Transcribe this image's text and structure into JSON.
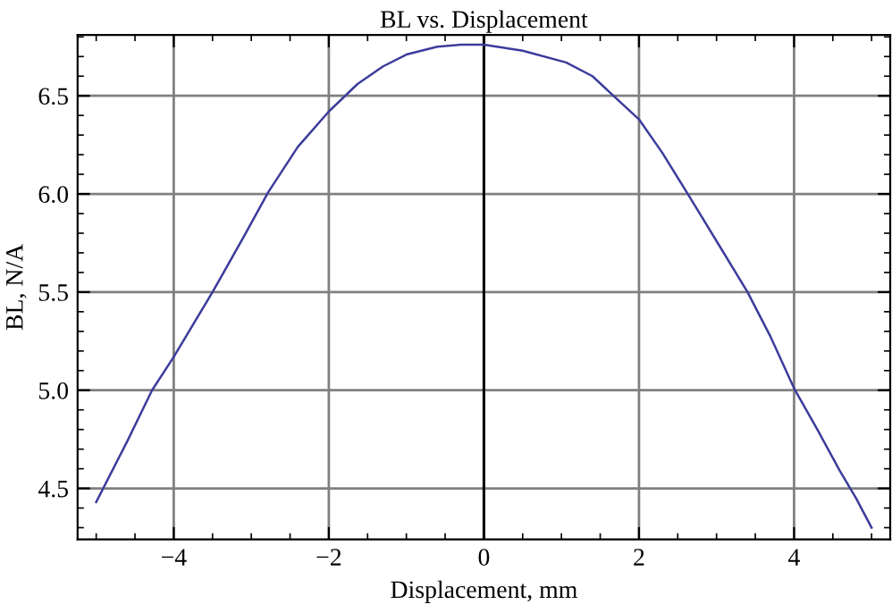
{
  "chart_data": {
    "type": "line",
    "title": "BL vs. Displacement",
    "xlabel": "Displacement, mm",
    "ylabel": "BL, N/A",
    "x": [
      -5.0,
      -4.6,
      -4.28,
      -4.0,
      -3.5,
      -3.1,
      -2.78,
      -2.4,
      -2.0,
      -1.63,
      -1.3,
      -1.0,
      -0.6,
      -0.3,
      0.0,
      0.5,
      1.06,
      1.4,
      1.67,
      2.0,
      2.3,
      2.63,
      3.0,
      3.4,
      3.7,
      4.0,
      4.3,
      4.59,
      4.8,
      5.0
    ],
    "series": [
      {
        "color": "#3c3c9c",
        "values": [
          4.43,
          4.74,
          5.0,
          5.17,
          5.5,
          5.78,
          6.01,
          6.24,
          6.42,
          6.56,
          6.65,
          6.71,
          6.75,
          6.76,
          6.76,
          6.73,
          6.67,
          6.6,
          6.5,
          6.38,
          6.21,
          6.0,
          5.76,
          5.5,
          5.27,
          5.01,
          4.8,
          4.59,
          4.45,
          4.3
        ]
      }
    ],
    "xlim": [
      -5.24,
      5.24
    ],
    "ylim": [
      4.24,
      6.81
    ],
    "xticks": [
      -4,
      -2,
      0,
      2,
      4
    ],
    "yticks": [
      4.5,
      {
        "value": 5,
        "label": "5.0"
      },
      5.5,
      {
        "value": 6,
        "label": "6.0"
      },
      6.5
    ],
    "grid": true,
    "ref_lines": [
      {
        "axis": "x",
        "value": 0,
        "color": "#000000"
      }
    ]
  }
}
